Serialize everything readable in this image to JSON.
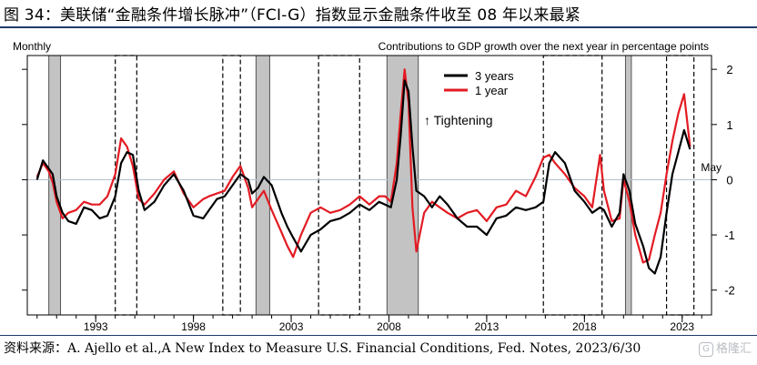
{
  "header": {
    "title": "图 34：美联储“金融条件增长脉冲”（FCI-G）指数显示金融条件收至 08 年以来最紧"
  },
  "footer": {
    "source_label": "资料来源：",
    "source_text": "A. Ajello et al.,A New Index to Measure U.S. Financial Conditions, Fed. Notes, 2023/6/30",
    "watermark": "格隆汇",
    "watermark_logo": "G"
  },
  "chart_data": {
    "type": "line",
    "left_label": "Monthly",
    "top_right_label": "Contributions to GDP growth over the next year in percentage points",
    "annotation": "↑ Tightening",
    "end_label": "May",
    "xlim": [
      1989.5,
      2024.5
    ],
    "ylim": [
      -2.45,
      2.25
    ],
    "yticks": [
      -2,
      -1,
      0,
      1,
      2
    ],
    "xticks": [
      1993,
      1998,
      2003,
      2008,
      2013,
      2018,
      2023
    ],
    "zero_line": true,
    "legend_position": "top-right",
    "recessions": [
      [
        1990.6,
        1991.2
      ],
      [
        2001.2,
        2001.9
      ],
      [
        2007.9,
        2009.5
      ],
      [
        2020.1,
        2020.4
      ]
    ],
    "tightening_periods": [
      [
        1994.0,
        1995.1
      ],
      [
        1999.5,
        2000.4
      ],
      [
        2004.4,
        2006.5
      ],
      [
        2015.9,
        2018.9
      ],
      [
        2022.2,
        2023.6
      ]
    ],
    "series": [
      {
        "name": "3 years",
        "color": "#000000",
        "x": [
          1990.0,
          1990.3,
          1990.6,
          1990.8,
          1991.0,
          1991.3,
          1991.6,
          1992.0,
          1992.4,
          1992.8,
          1993.2,
          1993.6,
          1994.0,
          1994.3,
          1994.6,
          1994.9,
          1995.2,
          1995.5,
          1996.0,
          1996.5,
          1997.0,
          1997.5,
          1998.0,
          1998.5,
          1998.8,
          1999.2,
          1999.6,
          2000.0,
          2000.4,
          2000.8,
          2001.0,
          2001.3,
          2001.6,
          2002.0,
          2002.5,
          2002.8,
          2003.1,
          2003.5,
          2004.0,
          2004.5,
          2005.0,
          2005.5,
          2006.0,
          2006.5,
          2007.0,
          2007.5,
          2007.8,
          2008.1,
          2008.4,
          2008.6,
          2008.8,
          2009.0,
          2009.2,
          2009.4,
          2009.8,
          2010.2,
          2010.6,
          2011.0,
          2011.5,
          2012.0,
          2012.5,
          2013.0,
          2013.5,
          2014.0,
          2014.5,
          2015.0,
          2015.5,
          2015.9,
          2016.2,
          2016.5,
          2017.0,
          2017.5,
          2018.0,
          2018.4,
          2018.8,
          2019.0,
          2019.4,
          2019.8,
          2020.0,
          2020.3,
          2020.6,
          2021.0,
          2021.3,
          2021.6,
          2021.9,
          2022.2,
          2022.5,
          2022.8,
          2023.1,
          2023.4
        ],
        "y": [
          0.0,
          0.35,
          0.2,
          0.1,
          -0.3,
          -0.6,
          -0.75,
          -0.8,
          -0.5,
          -0.55,
          -0.7,
          -0.65,
          -0.3,
          0.3,
          0.5,
          0.45,
          -0.2,
          -0.55,
          -0.4,
          -0.1,
          0.1,
          -0.2,
          -0.65,
          -0.7,
          -0.55,
          -0.35,
          -0.3,
          -0.1,
          0.1,
          0.0,
          -0.25,
          -0.15,
          0.05,
          -0.1,
          -0.6,
          -0.85,
          -1.05,
          -1.3,
          -1.0,
          -0.9,
          -0.75,
          -0.7,
          -0.6,
          -0.45,
          -0.55,
          -0.4,
          -0.45,
          -0.5,
          0.0,
          0.8,
          1.8,
          1.6,
          0.6,
          -0.2,
          -0.3,
          -0.5,
          -0.3,
          -0.45,
          -0.7,
          -0.85,
          -0.85,
          -1.0,
          -0.7,
          -0.65,
          -0.5,
          -0.55,
          -0.5,
          -0.4,
          0.3,
          0.5,
          0.3,
          -0.2,
          -0.4,
          -0.6,
          -0.5,
          -0.55,
          -0.85,
          -0.6,
          0.1,
          -0.2,
          -0.8,
          -1.2,
          -1.6,
          -1.7,
          -1.4,
          -0.6,
          0.1,
          0.5,
          0.9,
          0.55
        ]
      },
      {
        "name": "1 year",
        "color": "#e31b23",
        "x": [
          1990.0,
          1990.3,
          1990.6,
          1990.8,
          1991.0,
          1991.3,
          1991.6,
          1992.0,
          1992.4,
          1992.8,
          1993.2,
          1993.6,
          1994.0,
          1994.3,
          1994.6,
          1994.9,
          1995.2,
          1995.5,
          1996.0,
          1996.5,
          1997.0,
          1997.5,
          1998.0,
          1998.5,
          1998.8,
          1999.2,
          1999.6,
          2000.0,
          2000.4,
          2000.8,
          2001.0,
          2001.3,
          2001.6,
          2002.0,
          2002.5,
          2002.8,
          2003.1,
          2003.5,
          2004.0,
          2004.5,
          2005.0,
          2005.5,
          2006.0,
          2006.5,
          2007.0,
          2007.5,
          2007.8,
          2008.1,
          2008.4,
          2008.6,
          2008.8,
          2009.0,
          2009.2,
          2009.4,
          2009.8,
          2010.2,
          2010.6,
          2011.0,
          2011.5,
          2012.0,
          2012.5,
          2013.0,
          2013.5,
          2014.0,
          2014.5,
          2015.0,
          2015.5,
          2015.9,
          2016.2,
          2016.5,
          2017.0,
          2017.5,
          2018.0,
          2018.4,
          2018.8,
          2019.0,
          2019.4,
          2019.8,
          2020.0,
          2020.3,
          2020.6,
          2021.0,
          2021.3,
          2021.6,
          2021.9,
          2022.2,
          2022.5,
          2022.8,
          2023.1,
          2023.4
        ],
        "y": [
          0.05,
          0.3,
          0.15,
          -0.05,
          -0.4,
          -0.7,
          -0.6,
          -0.55,
          -0.4,
          -0.45,
          -0.45,
          -0.3,
          0.1,
          0.75,
          0.6,
          0.25,
          -0.35,
          -0.45,
          -0.25,
          0.0,
          0.15,
          -0.25,
          -0.5,
          -0.35,
          -0.3,
          -0.25,
          -0.2,
          0.05,
          0.25,
          -0.15,
          -0.5,
          -0.35,
          -0.2,
          -0.55,
          -0.95,
          -1.2,
          -1.4,
          -1.0,
          -0.6,
          -0.5,
          -0.6,
          -0.55,
          -0.45,
          -0.3,
          -0.45,
          -0.3,
          -0.3,
          -0.4,
          0.3,
          1.2,
          2.0,
          1.4,
          -0.5,
          -1.3,
          -0.6,
          -0.4,
          -0.5,
          -0.6,
          -0.7,
          -0.6,
          -0.55,
          -0.75,
          -0.5,
          -0.45,
          -0.2,
          -0.3,
          0.05,
          0.4,
          0.45,
          0.3,
          0.1,
          -0.15,
          -0.3,
          -0.5,
          0.45,
          -0.2,
          -0.75,
          -0.7,
          0.0,
          -0.4,
          -1.0,
          -1.5,
          -1.45,
          -1.0,
          -0.6,
          0.1,
          0.7,
          1.2,
          1.55,
          0.6
        ]
      }
    ]
  }
}
